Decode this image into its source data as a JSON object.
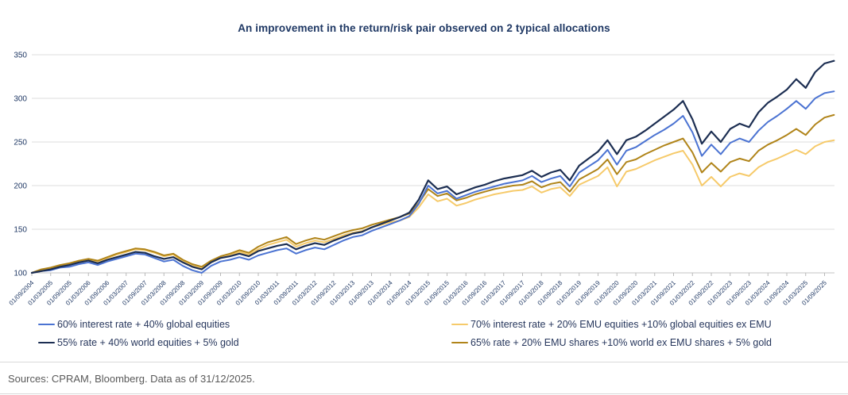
{
  "title": "An improvement in the return/risk pair observed on 2 typical allocations",
  "footer": "Sources: CPRAM, Bloomberg. Data as of 31/12/2025.",
  "chart_data": {
    "type": "line",
    "title": "An improvement in the return/risk pair observed on 2 typical allocations",
    "xlabel": "",
    "ylabel": "",
    "ylim": [
      100,
      350
    ],
    "y_ticks": [
      100,
      150,
      200,
      250,
      300,
      350
    ],
    "grid": "horizontal",
    "legend_position": "bottom-two-columns",
    "x_start_year": 2004.75,
    "x_step_years": 0.25,
    "x_tick_step_years": 0.5,
    "x_tick_labels": [
      "01/09/2004",
      "01/03/2005",
      "01/09/2005",
      "01/03/2006",
      "01/09/2006",
      "01/03/2007",
      "01/09/2007",
      "01/03/2008",
      "01/09/2008",
      "01/03/2009",
      "01/09/2009",
      "01/03/2010",
      "01/09/2010",
      "01/03/2011",
      "01/09/2011",
      "01/03/2012",
      "01/09/2012",
      "01/03/2013",
      "01/09/2013",
      "01/03/2014",
      "01/09/2014",
      "01/03/2015",
      "01/09/2015",
      "01/03/2016",
      "01/09/2016",
      "01/03/2017",
      "01/09/2017",
      "01/03/2018",
      "01/09/2018",
      "01/03/2019",
      "01/09/2019",
      "01/03/2020",
      "01/09/2020",
      "01/03/2021",
      "01/09/2021",
      "01/03/2022",
      "01/09/2022",
      "01/03/2023",
      "01/09/2023",
      "01/03/2024",
      "01/09/2024",
      "01/03/2025",
      "01/09/2025"
    ],
    "draw_order": [
      1,
      3,
      0,
      2
    ],
    "series": [
      {
        "name": "60% interest rate + 40% global equities",
        "color": "#4b73d2",
        "width": 2,
        "values": [
          100,
          102,
          103,
          106,
          107,
          110,
          112,
          109,
          113,
          116,
          119,
          122,
          121,
          117,
          113,
          115,
          108,
          103,
          100,
          108,
          113,
          115,
          118,
          115,
          120,
          123,
          126,
          128,
          122,
          126,
          129,
          127,
          132,
          137,
          141,
          143,
          148,
          152,
          156,
          160,
          165,
          179,
          200,
          191,
          194,
          185,
          189,
          193,
          196,
          199,
          202,
          204,
          206,
          211,
          204,
          208,
          211,
          199,
          215,
          222,
          229,
          241,
          224,
          240,
          244,
          251,
          258,
          264,
          271,
          280,
          261,
          234,
          247,
          236,
          249,
          254,
          250,
          263,
          273,
          280,
          288,
          297,
          288,
          300,
          306,
          308
        ]
      },
      {
        "name": "70% interest rate + 20% EMU equities +10% global equities ex EMU",
        "color": "#f6ca6a",
        "width": 2,
        "values": [
          100,
          103,
          105,
          108,
          110,
          113,
          115,
          113,
          117,
          121,
          124,
          127,
          126,
          123,
          119,
          121,
          113,
          108,
          105,
          112,
          117,
          120,
          124,
          121,
          127,
          132,
          135,
          138,
          130,
          134,
          137,
          135,
          139,
          143,
          146,
          148,
          152,
          155,
          158,
          160,
          164,
          175,
          190,
          182,
          185,
          177,
          180,
          184,
          187,
          190,
          192,
          194,
          195,
          199,
          192,
          196,
          198,
          188,
          201,
          206,
          211,
          221,
          199,
          216,
          219,
          224,
          229,
          233,
          237,
          240,
          224,
          200,
          210,
          199,
          210,
          214,
          211,
          221,
          227,
          231,
          236,
          241,
          236,
          245,
          250,
          252
        ]
      },
      {
        "name": "55% rate + 40% world equities + 5% gold",
        "color": "#1c2e52",
        "width": 2.2,
        "values": [
          100,
          102,
          104,
          107,
          109,
          112,
          114,
          111,
          115,
          118,
          121,
          124,
          123,
          119,
          116,
          118,
          112,
          107,
          104,
          112,
          117,
          119,
          122,
          119,
          125,
          128,
          131,
          133,
          127,
          131,
          134,
          132,
          137,
          141,
          145,
          147,
          152,
          156,
          160,
          164,
          169,
          184,
          206,
          196,
          199,
          190,
          194,
          198,
          201,
          205,
          208,
          210,
          212,
          217,
          210,
          215,
          218,
          206,
          223,
          231,
          239,
          252,
          236,
          252,
          256,
          263,
          271,
          279,
          287,
          297,
          276,
          248,
          262,
          250,
          265,
          271,
          267,
          284,
          295,
          302,
          310,
          322,
          312,
          330,
          340,
          343
        ]
      },
      {
        "name": "65% rate + 20% EMU shares +10% world ex EMU shares + 5% gold",
        "color": "#b08419",
        "width": 2,
        "values": [
          100,
          104,
          106,
          109,
          111,
          114,
          116,
          114,
          118,
          122,
          125,
          128,
          127,
          124,
          120,
          122,
          115,
          110,
          107,
          114,
          119,
          122,
          126,
          123,
          130,
          135,
          138,
          141,
          133,
          137,
          140,
          138,
          142,
          146,
          149,
          151,
          155,
          158,
          161,
          164,
          168,
          180,
          196,
          188,
          191,
          183,
          186,
          190,
          193,
          196,
          198,
          200,
          201,
          205,
          198,
          202,
          204,
          193,
          207,
          213,
          219,
          230,
          213,
          227,
          230,
          236,
          241,
          246,
          250,
          254,
          238,
          215,
          226,
          216,
          227,
          231,
          228,
          240,
          247,
          252,
          258,
          265,
          258,
          270,
          278,
          281
        ]
      }
    ],
    "colors": {
      "gridline": "#dcdcdc",
      "axis": "#c3c3c3",
      "tick": "#b9b9b9",
      "tick_label": "#1f3864",
      "title": "#1f3864",
      "legend_text": "#26365c",
      "footer_text": "#595959"
    }
  }
}
